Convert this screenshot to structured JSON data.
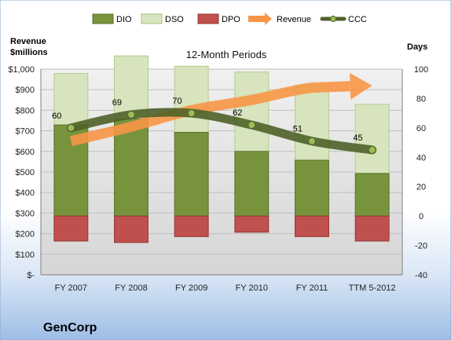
{
  "company": "GenCorp",
  "chart_data": {
    "type": "bar",
    "subtitle": "12-Month Periods",
    "categories": [
      "FY 2007",
      "FY 2008",
      "FY 2009",
      "FY 2010",
      "FY 2011",
      "TTM 5-2012"
    ],
    "left_axis_label": [
      "Revenue",
      "$millions"
    ],
    "left_axis_ticks": [
      "$1,000",
      "$900",
      "$800",
      "$700",
      "$600",
      "$500",
      "$400",
      "$300",
      "$200",
      "$100",
      "$-"
    ],
    "left_axis_range": [
      0,
      1000
    ],
    "right_axis_label": "Days",
    "right_axis_ticks": [
      "100",
      "80",
      "60",
      "40",
      "20",
      "0",
      "-20",
      "-40"
    ],
    "right_axis_range": [
      -40,
      100
    ],
    "series": [
      {
        "name": "DIO",
        "axis": "right",
        "kind": "stacked-bar",
        "color": "#77933C",
        "values": [
          62,
          66,
          57,
          44,
          38,
          29
        ]
      },
      {
        "name": "DSO",
        "axis": "right",
        "kind": "stacked-bar",
        "color": "#D7E4BD",
        "values": [
          35,
          43,
          45,
          54,
          51,
          47
        ]
      },
      {
        "name": "DPO",
        "axis": "right",
        "kind": "negative-bar",
        "color": "#C0504D",
        "values": [
          -17,
          -18,
          -14,
          -11,
          -14,
          -17
        ]
      },
      {
        "name": "Revenue",
        "axis": "left",
        "kind": "trend-arrow",
        "color": "#F79646",
        "values": [
          650,
          720,
          800,
          850,
          910,
          920
        ]
      },
      {
        "name": "CCC",
        "axis": "right",
        "kind": "line",
        "color": "#4F6228",
        "values": [
          60,
          69,
          70,
          62,
          51,
          45
        ]
      }
    ],
    "data_labels": [
      "60",
      "69",
      "70",
      "62",
      "51",
      "45"
    ],
    "grid": true,
    "legend_position": "top"
  }
}
